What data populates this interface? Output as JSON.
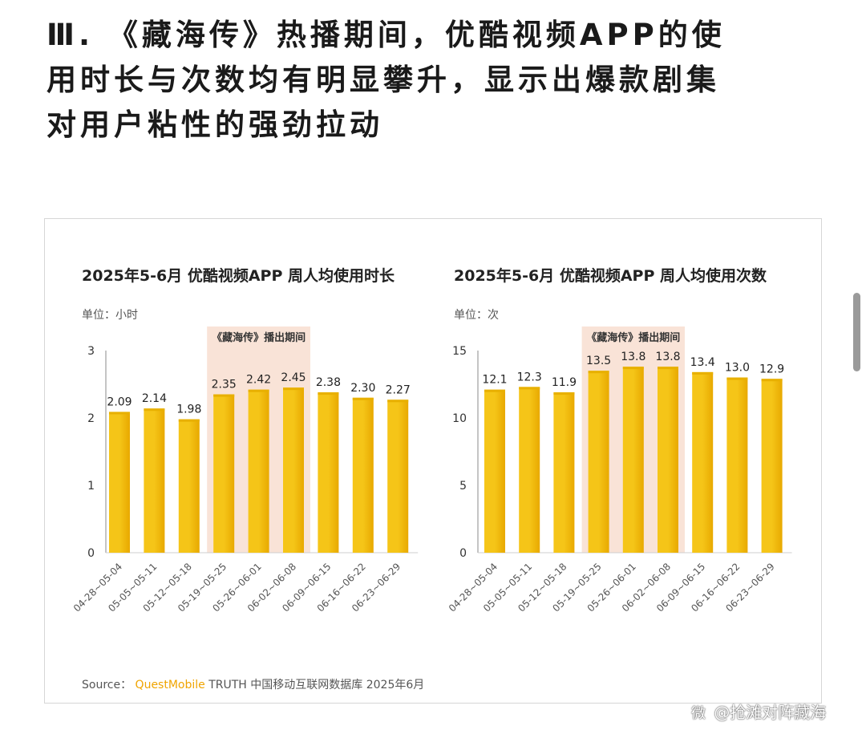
{
  "headline": {
    "line1": "Ⅲ. 《藏海传》热播期间，优酷视频APP的使",
    "line2": "用时长与次数均有明显攀升，显示出爆款剧集",
    "line3": "对用户粘性的强劲拉动"
  },
  "source": {
    "prefix": "Source：",
    "brand": "QuestMobile",
    "rest": " TRUTH 中国移动互联网数据库 2025年6月"
  },
  "watermark": {
    "logo": "微",
    "text": "@抢滩对阵藏海"
  },
  "colors": {
    "bar": "#f5c518",
    "bar_highlight": "#fde58a",
    "period_shade": "#f9e3d7"
  },
  "chart_data": [
    {
      "type": "bar",
      "title": "2025年5-6月 优酷视频APP 周人均使用时长",
      "unit_label": "单位：小时",
      "annotation": "《藏海传》播出期间",
      "highlight_range": [
        "05-19~05-25",
        "06-02~06-08"
      ],
      "categories": [
        "04-28~05-04",
        "05-05~05-11",
        "05-12~05-18",
        "05-19~05-25",
        "05-26~06-01",
        "06-02~06-08",
        "06-09~06-15",
        "06-16~06-22",
        "06-23~06-29"
      ],
      "values": [
        2.09,
        2.14,
        1.98,
        2.35,
        2.42,
        2.45,
        2.38,
        2.3,
        2.27
      ],
      "value_labels": [
        "2.09",
        "2.14",
        "1.98",
        "2.35",
        "2.42",
        "2.45",
        "2.38",
        "2.30",
        "2.27"
      ],
      "ylim": [
        0,
        3
      ],
      "yticks": [
        "0",
        "1",
        "2",
        "3"
      ]
    },
    {
      "type": "bar",
      "title": "2025年5-6月 优酷视频APP 周人均使用次数",
      "unit_label": "单位：次",
      "annotation": "《藏海传》播出期间",
      "highlight_range": [
        "05-19~05-25",
        "06-02~06-08"
      ],
      "categories": [
        "04-28~05-04",
        "05-05~05-11",
        "05-12~05-18",
        "05-19~05-25",
        "05-26~06-01",
        "06-02~06-08",
        "06-09~06-15",
        "06-16~06-22",
        "06-23~06-29"
      ],
      "values": [
        12.1,
        12.3,
        11.9,
        13.5,
        13.8,
        13.8,
        13.4,
        13.0,
        12.9
      ],
      "value_labels": [
        "12.1",
        "12.3",
        "11.9",
        "13.5",
        "13.8",
        "13.8",
        "13.4",
        "13.0",
        "12.9"
      ],
      "ylim": [
        0,
        15
      ],
      "yticks": [
        "0",
        "5",
        "10",
        "15"
      ]
    }
  ]
}
